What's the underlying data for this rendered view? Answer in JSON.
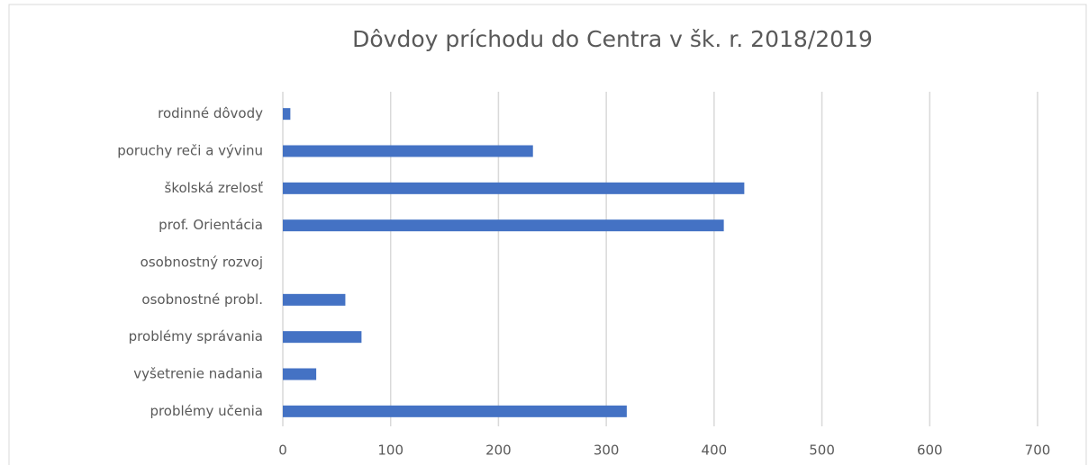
{
  "chart_data": {
    "type": "barh",
    "title": "Dôvdoy príchodu do Centra v šk. r. 2018/2019",
    "categories": [
      "rodinné dôvody",
      "poruchy reči a vývinu",
      "školská zrelosť",
      "prof. Orientácia",
      "osobnostný rozvoj",
      "osobnostné probl.",
      "problémy správania",
      "vyšetrenie nadania",
      "problémy učenia"
    ],
    "values": [
      7,
      232,
      428,
      409,
      0,
      58,
      73,
      31,
      319
    ],
    "color": "#4472c4",
    "xlim": [
      0,
      700
    ],
    "xticks": [
      0,
      100,
      200,
      300,
      400,
      500,
      600,
      700
    ],
    "grid": true
  }
}
